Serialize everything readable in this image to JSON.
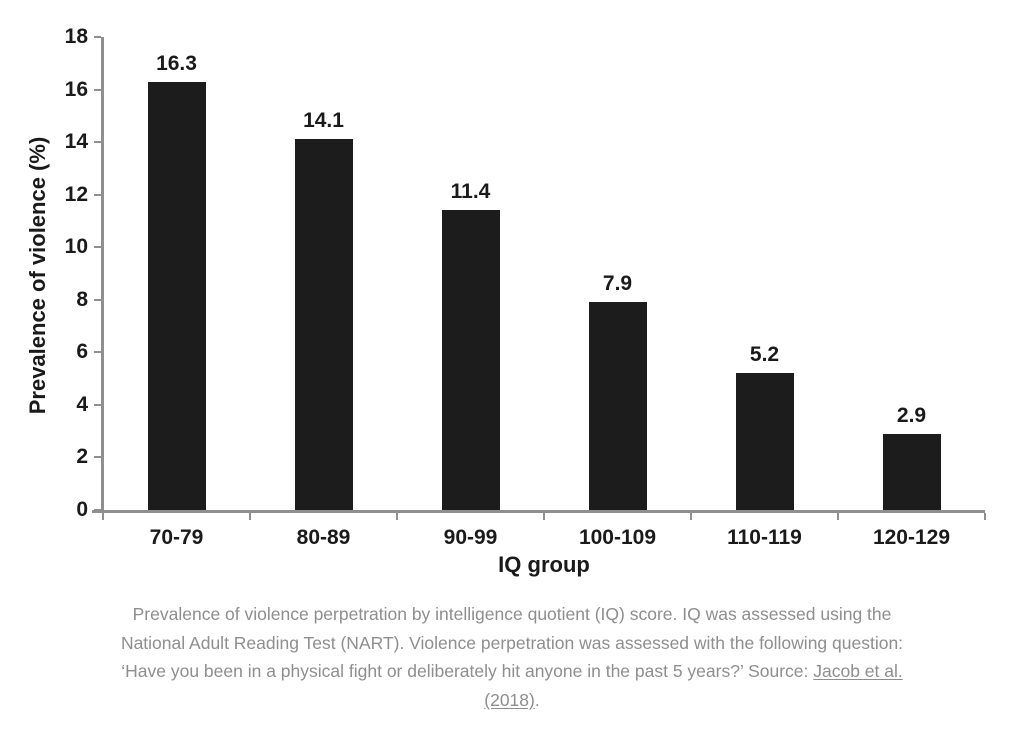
{
  "chart_data": {
    "type": "bar",
    "title": "",
    "xlabel": "IQ group",
    "ylabel": "Prevalence of violence (%)",
    "categories": [
      "70-79",
      "80-89",
      "90-99",
      "100-109",
      "110-119",
      "120-129"
    ],
    "values": [
      16.3,
      14.1,
      11.4,
      7.9,
      5.2,
      2.9
    ],
    "value_labels": [
      "16.3",
      "14.1",
      "11.4",
      "7.9",
      "5.2",
      "2.9"
    ],
    "ylim": [
      0,
      18
    ],
    "yticks": [
      0,
      2,
      4,
      6,
      8,
      10,
      12,
      14,
      16,
      18
    ],
    "grid": false,
    "legend": "none",
    "bar_color": "#1c1c1c",
    "axis_color": "#8f8f8f",
    "text_color": "#1a1a1a"
  },
  "caption": {
    "line1": "Prevalence of violence perpetration by intelligence quotient (IQ) score. IQ was assessed using the",
    "line2": "National Adult Reading Test (NART). Violence perpetration was assessed with the following question:",
    "line3_pre": "‘Have you been in a physical fight or deliberately hit anyone in the past 5 years?’ Source: ",
    "line3_link": "Jacob et al.",
    "line4_link": "(2018)",
    "line4_suffix": ".",
    "source_link_text": "Jacob et al. (2018)",
    "text_color": "#8e8e8e"
  }
}
